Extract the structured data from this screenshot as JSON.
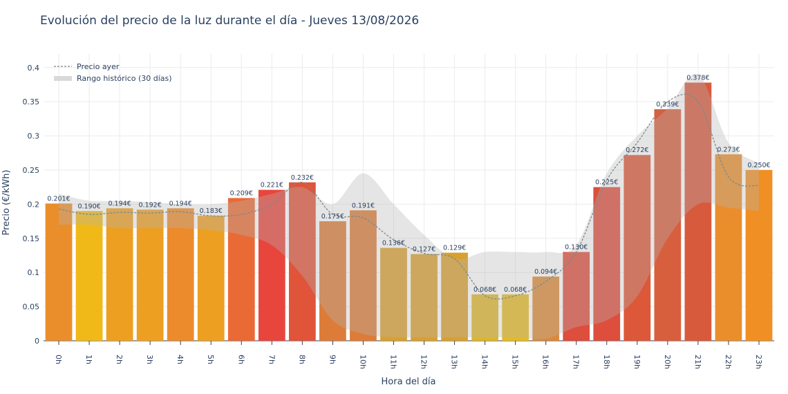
{
  "chart_data": {
    "type": "bar",
    "title": "Evolución del precio de la luz durante el día - Jueves 13/08/2026",
    "xlabel": "Hora del día",
    "ylabel": "Precio (€/kWh)",
    "ylim": [
      0,
      0.42
    ],
    "yticks": [
      0,
      0.05,
      0.1,
      0.15,
      0.2,
      0.25,
      0.3,
      0.35,
      0.4
    ],
    "ytick_labels": [
      "0",
      "0.05",
      "0.1",
      "0.15",
      "0.2",
      "0.25",
      "0.3",
      "0.35",
      "0.4"
    ],
    "grid": true,
    "legend_position": "top-left",
    "categories": [
      "0h",
      "1h",
      "2h",
      "3h",
      "4h",
      "5h",
      "6h",
      "7h",
      "8h",
      "9h",
      "10h",
      "11h",
      "12h",
      "13h",
      "14h",
      "15h",
      "16h",
      "17h",
      "18h",
      "19h",
      "20h",
      "21h",
      "22h",
      "23h"
    ],
    "series": [
      {
        "type": "bar",
        "values": [
          0.201,
          0.19,
          0.194,
          0.192,
          0.194,
          0.183,
          0.209,
          0.221,
          0.232,
          0.175,
          0.191,
          0.136,
          0.127,
          0.129,
          0.068,
          0.068,
          0.094,
          0.13,
          0.225,
          0.272,
          0.339,
          0.378,
          0.273,
          0.25
        ],
        "labels": [
          "0.201€",
          "0.190€",
          "0.194€",
          "0.192€",
          "0.194€",
          "0.183€",
          "0.209€",
          "0.221€",
          "0.232€",
          "0.175€",
          "0.191€",
          "0.136€",
          "0.127€",
          "0.129€",
          "0.068€",
          "0.068€",
          "0.094€",
          "0.130€",
          "0.225€",
          "0.272€",
          "0.339€",
          "0.378€",
          "0.273€",
          "0.250€"
        ],
        "colors": [
          "#ea8e2c",
          "#f0b918",
          "#ed9f22",
          "#ed9f22",
          "#ec8b2b",
          "#ed9f22",
          "#ea6a35",
          "#e8463c",
          "#e0543a",
          "#dc7c38",
          "#dc7c38",
          "#d9a02f",
          "#d9a02f",
          "#d9a02f",
          "#dfb52a",
          "#e5bb24",
          "#dc8938",
          "#dd4e3d",
          "#dd4e3d",
          "#dc5839",
          "#d85f3e",
          "#d85a3c",
          "#ea8e2c",
          "#f08f24"
        ]
      },
      {
        "name": "Precio ayer",
        "type": "line",
        "color": "#7a8a8a",
        "values": [
          0.193,
          0.185,
          0.188,
          0.187,
          0.189,
          0.183,
          0.185,
          0.2,
          0.232,
          0.185,
          0.18,
          0.148,
          0.128,
          0.12,
          0.066,
          0.066,
          0.087,
          0.13,
          0.235,
          0.29,
          0.35,
          0.35,
          0.24,
          0.227
        ]
      },
      {
        "name": "Rango histórico (30 días)",
        "type": "area",
        "color": "#c8c8c8",
        "lower": [
          0.17,
          0.17,
          0.165,
          0.165,
          0.165,
          0.162,
          0.155,
          0.14,
          0.095,
          0.03,
          0.01,
          0.005,
          0.005,
          0.005,
          0.005,
          0.005,
          0.003,
          0.02,
          0.03,
          0.065,
          0.15,
          0.2,
          0.195,
          0.19
        ],
        "upper": [
          0.215,
          0.205,
          0.205,
          0.203,
          0.2,
          0.2,
          0.205,
          0.215,
          0.225,
          0.2,
          0.245,
          0.2,
          0.155,
          0.12,
          0.13,
          0.13,
          0.13,
          0.14,
          0.245,
          0.3,
          0.34,
          0.39,
          0.29,
          0.26
        ]
      }
    ]
  }
}
